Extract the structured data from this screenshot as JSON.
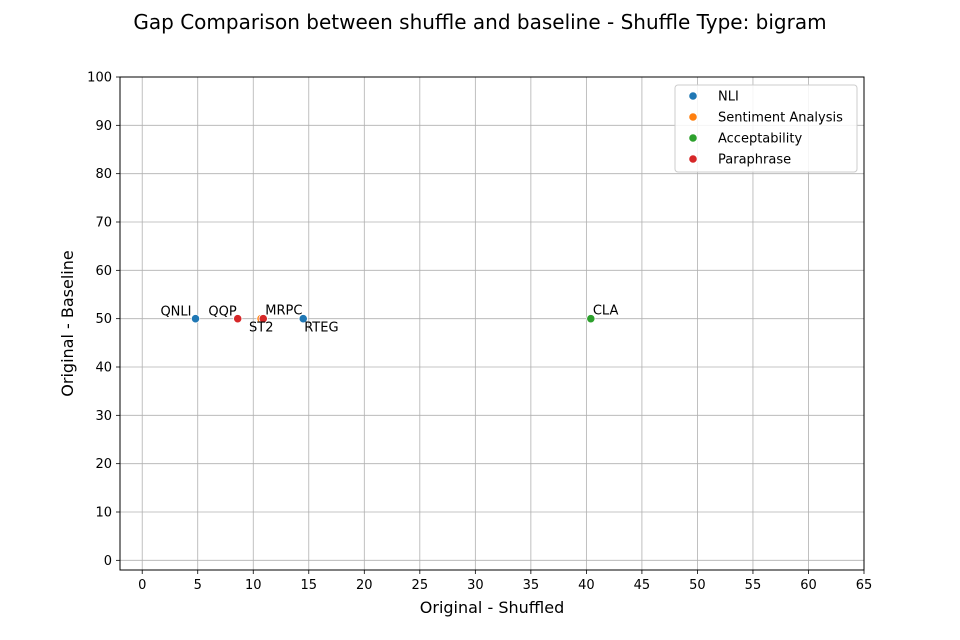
{
  "chart_data": {
    "type": "scatter",
    "title": "Gap Comparison between shuffle and baseline - Shuffle Type: bigram",
    "xlabel": "Original - Shuffled",
    "ylabel": "Original - Baseline",
    "xlim": [
      -2,
      65
    ],
    "ylim": [
      -2,
      100
    ],
    "xticks": [
      0,
      5,
      10,
      15,
      20,
      25,
      30,
      35,
      40,
      45,
      50,
      55,
      60,
      65
    ],
    "yticks": [
      0,
      10,
      20,
      30,
      40,
      50,
      60,
      70,
      80,
      90,
      100
    ],
    "grid": true,
    "legend_position": "top-right",
    "series": [
      {
        "name": "NLI",
        "color": "#1f77b4",
        "points": [
          {
            "label": "QNLI",
            "x": 4.8,
            "y": 50
          },
          {
            "label": "RTEG",
            "x": 14.5,
            "y": 50
          }
        ]
      },
      {
        "name": "Sentiment Analysis",
        "color": "#ff7f0e",
        "points": [
          {
            "label": "ST2",
            "x": 10.7,
            "y": 50
          }
        ]
      },
      {
        "name": "Acceptability",
        "color": "#2ca02c",
        "points": [
          {
            "label": "CLA",
            "x": 40.4,
            "y": 50
          }
        ]
      },
      {
        "name": "Paraphrase",
        "color": "#d62728",
        "points": [
          {
            "label": "QQP",
            "x": 8.6,
            "y": 50
          },
          {
            "label": "MRPC",
            "x": 10.9,
            "y": 50
          }
        ]
      }
    ]
  }
}
